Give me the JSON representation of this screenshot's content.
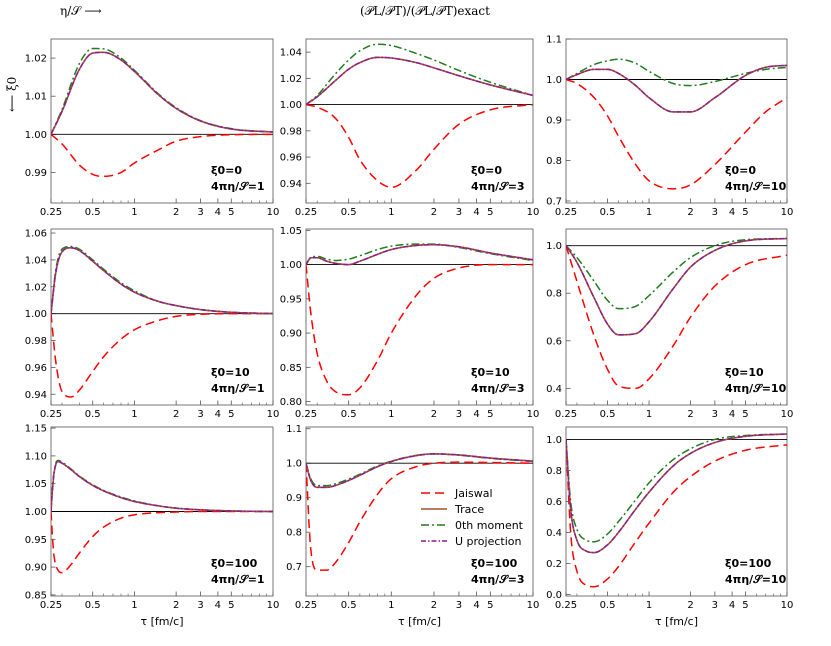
{
  "header": {
    "left": "η/𝒮 ⟶",
    "center": "(𝒫L/𝒫T)/(𝒫L/𝒫T)exact",
    "ylabel": "⟵ ξ0"
  },
  "colors": {
    "Jaiswal": "#ff0000",
    "Trace": "#a0522d",
    "0th moment": "#1e7d1e",
    "U projection": "#8b1a9b",
    "baseline": "#000000"
  },
  "chart_data": {
    "type": "line",
    "xscale": "log",
    "xlim": [
      0.25,
      10
    ],
    "xticks": [
      0.25,
      0.5,
      1,
      2,
      3,
      4,
      5,
      10
    ],
    "xtick_labels": [
      "0.25",
      "0.5",
      "1",
      "2",
      "3",
      "4",
      "5",
      "10"
    ],
    "xlabel": "τ [fm/c]",
    "legend": {
      "location": "panel-2-1",
      "entries": [
        "Jaiswal",
        "Trace",
        "0th moment",
        "U projection"
      ]
    },
    "panels": [
      {
        "row": 0,
        "col": 0,
        "xi": "ξ0=0",
        "eta": "4πη/𝒮=1",
        "ylim": [
          0.982,
          1.025
        ],
        "yticks": [
          0.99,
          1.0,
          1.01,
          1.02
        ],
        "ytick_labels": [
          "0.99",
          "1.00",
          "1.01",
          "1.02"
        ],
        "x": [
          0.25,
          0.3,
          0.4,
          0.5,
          0.6,
          0.8,
          1,
          1.5,
          2,
          3,
          5,
          10
        ],
        "series": [
          {
            "name": "Jaiswal",
            "values": [
              1.0,
              0.9975,
              0.992,
              0.9895,
              0.989,
              0.99,
              0.9925,
              0.996,
              0.9982,
              0.9994,
              0.9999,
              1.0
            ]
          },
          {
            "name": "Trace",
            "values": [
              1.0,
              1.006,
              1.017,
              1.0213,
              1.0215,
              1.0195,
              1.0165,
              1.0103,
              1.0068,
              1.0035,
              1.0014,
              1.0006
            ]
          },
          {
            "name": "0th moment",
            "values": [
              1.0,
              1.0065,
              1.0185,
              1.0225,
              1.0224,
              1.02,
              1.0168,
              1.0105,
              1.007,
              1.0036,
              1.0015,
              1.0006
            ]
          },
          {
            "name": "U projection",
            "values": [
              1.0,
              1.006,
              1.017,
              1.0213,
              1.0215,
              1.0195,
              1.0165,
              1.0103,
              1.0068,
              1.0035,
              1.0014,
              1.0006
            ]
          }
        ]
      },
      {
        "row": 0,
        "col": 1,
        "xi": "ξ0=0",
        "eta": "4πη/𝒮=3",
        "ylim": [
          0.925,
          1.05
        ],
        "yticks": [
          0.94,
          0.96,
          0.98,
          1.0,
          1.02,
          1.04
        ],
        "ytick_labels": [
          "0.94",
          "0.96",
          "0.98",
          "1.00",
          "1.02",
          "1.04"
        ],
        "x": [
          0.25,
          0.3,
          0.4,
          0.5,
          0.6,
          0.8,
          1,
          1.5,
          2,
          3,
          5,
          10
        ],
        "series": [
          {
            "name": "Jaiswal",
            "values": [
              1.0,
              0.998,
              0.99,
              0.975,
              0.958,
              0.942,
              0.937,
              0.95,
              0.966,
              0.985,
              0.996,
              1.0
            ]
          },
          {
            "name": "Trace",
            "values": [
              1.0,
              1.006,
              1.018,
              1.027,
              1.032,
              1.036,
              1.0355,
              1.032,
              1.028,
              1.022,
              1.015,
              1.007
            ]
          },
          {
            "name": "0th moment",
            "values": [
              1.0,
              1.007,
              1.023,
              1.034,
              1.041,
              1.046,
              1.045,
              1.039,
              1.034,
              1.026,
              1.017,
              1.007
            ]
          },
          {
            "name": "U projection",
            "values": [
              1.0,
              1.006,
              1.018,
              1.027,
              1.032,
              1.036,
              1.0355,
              1.032,
              1.028,
              1.022,
              1.015,
              1.007
            ]
          }
        ]
      },
      {
        "row": 0,
        "col": 2,
        "xi": "ξ0=0",
        "eta": "4πη/𝒮=10",
        "ylim": [
          0.695,
          1.1
        ],
        "yticks": [
          0.7,
          0.8,
          0.9,
          1.0,
          1.1
        ],
        "ytick_labels": [
          "0.7",
          "0.8",
          "0.9",
          "1.0",
          "1.1"
        ],
        "x": [
          0.25,
          0.3,
          0.4,
          0.5,
          0.6,
          0.8,
          1,
          1.5,
          2,
          3,
          5,
          7,
          10
        ],
        "series": [
          {
            "name": "Jaiswal",
            "values": [
              1.0,
              0.99,
              0.955,
              0.91,
              0.86,
              0.79,
              0.75,
              0.73,
              0.74,
              0.79,
              0.87,
              0.92,
              0.955
            ]
          },
          {
            "name": "Trace",
            "values": [
              1.0,
              1.012,
              1.025,
              1.025,
              1.015,
              0.985,
              0.955,
              0.92,
              0.92,
              0.955,
              1.01,
              1.03,
              1.035
            ]
          },
          {
            "name": "0th moment",
            "values": [
              1.0,
              1.015,
              1.037,
              1.046,
              1.05,
              1.04,
              1.02,
              0.99,
              0.985,
              0.995,
              1.015,
              1.025,
              1.03
            ]
          },
          {
            "name": "U projection",
            "values": [
              1.0,
              1.012,
              1.025,
              1.025,
              1.015,
              0.985,
              0.955,
              0.92,
              0.92,
              0.955,
              1.01,
              1.03,
              1.035
            ]
          }
        ]
      },
      {
        "row": 1,
        "col": 0,
        "xi": "ξ0=10",
        "eta": "4πη/𝒮=1",
        "ylim": [
          0.932,
          1.063
        ],
        "yticks": [
          0.94,
          0.96,
          0.98,
          1.0,
          1.02,
          1.04,
          1.06
        ],
        "ytick_labels": [
          "0.94",
          "0.96",
          "0.98",
          "1.00",
          "1.02",
          "1.04",
          "1.06"
        ],
        "x": [
          0.25,
          0.27,
          0.3,
          0.35,
          0.4,
          0.5,
          0.6,
          0.8,
          1,
          1.5,
          2,
          3,
          5,
          10
        ],
        "series": [
          {
            "name": "Jaiswal",
            "values": [
              1.0,
              0.965,
              0.942,
              0.938,
              0.943,
              0.957,
              0.968,
              0.981,
              0.988,
              0.995,
              0.998,
              0.9995,
              1.0,
              1.0
            ]
          },
          {
            "name": "Trace",
            "values": [
              1.0,
              1.03,
              1.046,
              1.049,
              1.047,
              1.039,
              1.032,
              1.022,
              1.016,
              1.009,
              1.006,
              1.003,
              1.001,
              1.0
            ]
          },
          {
            "name": "0th moment",
            "values": [
              1.0,
              1.032,
              1.048,
              1.05,
              1.048,
              1.04,
              1.033,
              1.023,
              1.017,
              1.009,
              1.006,
              1.003,
              1.001,
              1.0
            ]
          },
          {
            "name": "U projection",
            "values": [
              1.0,
              1.03,
              1.046,
              1.049,
              1.047,
              1.039,
              1.032,
              1.022,
              1.016,
              1.009,
              1.006,
              1.003,
              1.001,
              1.0
            ]
          }
        ]
      },
      {
        "row": 1,
        "col": 1,
        "xi": "ξ0=10",
        "eta": "4πη/𝒮=3",
        "ylim": [
          0.795,
          1.052
        ],
        "yticks": [
          0.8,
          0.85,
          0.9,
          0.95,
          1.0,
          1.05
        ],
        "ytick_labels": [
          "0.80",
          "0.85",
          "0.90",
          "0.95",
          "1.00",
          "1.05"
        ],
        "x": [
          0.25,
          0.27,
          0.3,
          0.35,
          0.4,
          0.5,
          0.6,
          0.8,
          1,
          1.5,
          2,
          3,
          5,
          10
        ],
        "series": [
          {
            "name": "Jaiswal",
            "values": [
              1.0,
              0.93,
              0.87,
              0.83,
              0.815,
              0.81,
              0.82,
              0.86,
              0.9,
              0.955,
              0.98,
              0.995,
              1.0,
              1.0
            ]
          },
          {
            "name": "Trace",
            "values": [
              1.0,
              1.01,
              1.01,
              1.005,
              1.002,
              1.0,
              1.005,
              1.015,
              1.022,
              1.028,
              1.029,
              1.026,
              1.017,
              1.007
            ]
          },
          {
            "name": "0th moment",
            "values": [
              1.0,
              1.01,
              1.012,
              1.008,
              1.006,
              1.008,
              1.013,
              1.022,
              1.027,
              1.03,
              1.03,
              1.025,
              1.016,
              1.006
            ]
          },
          {
            "name": "U projection",
            "values": [
              1.0,
              1.01,
              1.01,
              1.005,
              1.002,
              1.0,
              1.005,
              1.015,
              1.022,
              1.028,
              1.029,
              1.026,
              1.017,
              1.007
            ]
          }
        ]
      },
      {
        "row": 1,
        "col": 2,
        "xi": "ξ0=10",
        "eta": "4πη/𝒮=10",
        "ylim": [
          0.33,
          1.07
        ],
        "yticks": [
          0.4,
          0.6,
          0.8,
          1.0
        ],
        "ytick_labels": [
          "0.4",
          "0.6",
          "0.8",
          "1.0"
        ],
        "x": [
          0.25,
          0.3,
          0.4,
          0.5,
          0.6,
          0.8,
          1,
          1.5,
          2,
          3,
          5,
          10
        ],
        "series": [
          {
            "name": "Jaiswal",
            "values": [
              1.0,
              0.85,
              0.62,
              0.48,
              0.41,
              0.4,
              0.44,
              0.58,
              0.7,
              0.83,
              0.92,
              0.96
            ]
          },
          {
            "name": "Trace",
            "values": [
              1.0,
              0.93,
              0.78,
              0.67,
              0.625,
              0.63,
              0.68,
              0.82,
              0.91,
              0.98,
              1.02,
              1.03
            ]
          },
          {
            "name": "0th moment",
            "values": [
              1.0,
              0.95,
              0.85,
              0.77,
              0.735,
              0.745,
              0.79,
              0.89,
              0.95,
              1.0,
              1.025,
              1.03
            ]
          },
          {
            "name": "U projection",
            "values": [
              1.0,
              0.93,
              0.78,
              0.67,
              0.625,
              0.63,
              0.68,
              0.82,
              0.91,
              0.98,
              1.02,
              1.03
            ]
          }
        ]
      },
      {
        "row": 2,
        "col": 0,
        "xi": "ξ0=100",
        "eta": "4πη/𝒮=1",
        "ylim": [
          0.848,
          1.152
        ],
        "yticks": [
          0.85,
          0.9,
          0.95,
          1.0,
          1.05,
          1.1,
          1.15
        ],
        "ytick_labels": [
          "0.85",
          "0.90",
          "0.95",
          "1.00",
          "1.05",
          "1.10",
          "1.15"
        ],
        "x": [
          0.25,
          0.26,
          0.28,
          0.3,
          0.35,
          0.4,
          0.5,
          0.6,
          0.8,
          1,
          1.5,
          2,
          3,
          5,
          10
        ],
        "series": [
          {
            "name": "Jaiswal",
            "values": [
              1.0,
              0.93,
              0.895,
              0.89,
              0.905,
              0.925,
              0.955,
              0.972,
              0.988,
              0.994,
              0.998,
              0.999,
              1.0,
              1.0,
              1.0
            ]
          },
          {
            "name": "Trace",
            "values": [
              1.0,
              1.06,
              1.09,
              1.087,
              1.075,
              1.063,
              1.047,
              1.037,
              1.025,
              1.018,
              1.01,
              1.006,
              1.003,
              1.001,
              1.0
            ]
          },
          {
            "name": "0th moment",
            "values": [
              1.0,
              1.062,
              1.092,
              1.089,
              1.076,
              1.064,
              1.048,
              1.038,
              1.026,
              1.019,
              1.01,
              1.006,
              1.003,
              1.001,
              1.0
            ]
          },
          {
            "name": "U projection",
            "values": [
              1.0,
              1.06,
              1.09,
              1.087,
              1.075,
              1.063,
              1.047,
              1.037,
              1.025,
              1.018,
              1.01,
              1.006,
              1.003,
              1.001,
              1.0
            ]
          }
        ]
      },
      {
        "row": 2,
        "col": 1,
        "xi": "ξ0=100",
        "eta": "4πη/𝒮=3",
        "ylim": [
          0.615,
          1.105
        ],
        "yticks": [
          0.7,
          0.8,
          0.9,
          1.0,
          1.1
        ],
        "ytick_labels": [
          "0.7",
          "0.8",
          "0.9",
          "1.0",
          "1.1"
        ],
        "x": [
          0.25,
          0.27,
          0.3,
          0.35,
          0.4,
          0.5,
          0.6,
          0.8,
          1,
          1.5,
          2,
          3,
          5,
          10
        ],
        "series": [
          {
            "name": "Jaiswal",
            "values": [
              1.0,
              0.75,
              0.69,
              0.69,
              0.71,
              0.77,
              0.83,
              0.91,
              0.955,
              0.99,
              1.0,
              1.003,
              1.002,
              1.0
            ]
          },
          {
            "name": "Trace",
            "values": [
              1.0,
              0.95,
              0.93,
              0.93,
              0.935,
              0.95,
              0.965,
              0.99,
              1.005,
              1.022,
              1.027,
              1.024,
              1.015,
              1.006
            ]
          },
          {
            "name": "0th moment",
            "values": [
              1.0,
              0.955,
              0.935,
              0.935,
              0.94,
              0.954,
              0.968,
              0.992,
              1.006,
              1.023,
              1.027,
              1.023,
              1.014,
              1.005
            ]
          },
          {
            "name": "U projection",
            "values": [
              1.0,
              0.95,
              0.93,
              0.93,
              0.935,
              0.95,
              0.965,
              0.99,
              1.005,
              1.022,
              1.027,
              1.024,
              1.015,
              1.006
            ]
          }
        ]
      },
      {
        "row": 2,
        "col": 2,
        "xi": "ξ0=100",
        "eta": "4πη/𝒮=10",
        "ylim": [
          -0.01,
          1.08
        ],
        "yticks": [
          0.0,
          0.2,
          0.4,
          0.6,
          0.8,
          1.0
        ],
        "ytick_labels": [
          "0.0",
          "0.2",
          "0.4",
          "0.6",
          "0.8",
          "1.0"
        ],
        "x": [
          0.25,
          0.27,
          0.3,
          0.35,
          0.4,
          0.5,
          0.6,
          0.8,
          1,
          1.5,
          2,
          3,
          5,
          10
        ],
        "series": [
          {
            "name": "Jaiswal",
            "values": [
              1.0,
              0.4,
              0.15,
              0.06,
              0.05,
              0.1,
              0.18,
              0.34,
              0.46,
              0.66,
              0.76,
              0.86,
              0.93,
              0.965
            ]
          },
          {
            "name": "Trace",
            "values": [
              1.0,
              0.55,
              0.35,
              0.28,
              0.27,
              0.32,
              0.4,
              0.55,
              0.66,
              0.83,
              0.91,
              0.98,
              1.02,
              1.035
            ]
          },
          {
            "name": "0th moment",
            "values": [
              1.0,
              0.6,
              0.42,
              0.35,
              0.34,
              0.39,
              0.47,
              0.61,
              0.72,
              0.87,
              0.94,
              1.0,
              1.025,
              1.035
            ]
          },
          {
            "name": "U projection",
            "values": [
              1.0,
              0.55,
              0.35,
              0.28,
              0.27,
              0.32,
              0.4,
              0.55,
              0.66,
              0.83,
              0.91,
              0.98,
              1.02,
              1.035
            ]
          }
        ]
      }
    ]
  }
}
